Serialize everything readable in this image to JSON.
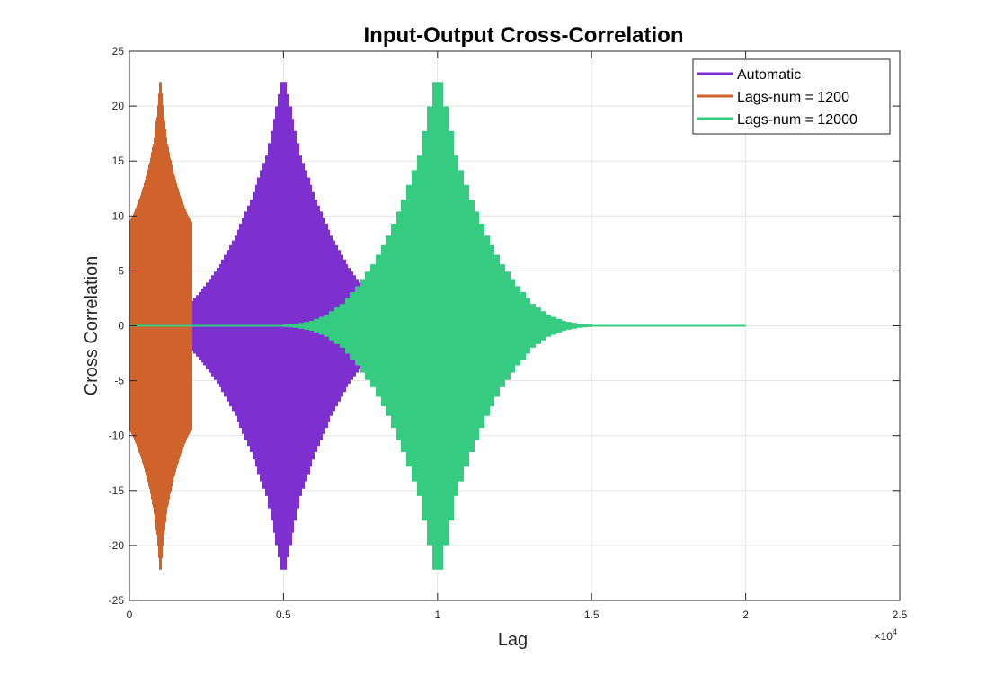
{
  "chart_data": {
    "type": "line",
    "title": "Input-Output Cross-Correlation",
    "xlabel": "Lag",
    "ylabel": "Cross Correlation",
    "x_exponent_label": "×10",
    "x_exponent_power": "4",
    "xlim": [
      0,
      25000
    ],
    "ylim": [
      -25,
      25
    ],
    "x_ticks": [
      0,
      5000,
      10000,
      15000,
      20000,
      25000
    ],
    "x_tick_labels": [
      "0",
      "0.5",
      "1",
      "1.5",
      "2",
      "2.5"
    ],
    "y_ticks": [
      -25,
      -20,
      -15,
      -10,
      -5,
      0,
      5,
      10,
      15,
      20,
      25
    ],
    "y_tick_labels": [
      "-25",
      "-20",
      "-15",
      "-10",
      "-5",
      "0",
      "5",
      "10",
      "15",
      "20",
      "25"
    ],
    "grid": true,
    "legend_position": "top-right",
    "series": [
      {
        "name": "Automatic",
        "color": "#7E2FD0",
        "x_range": [
          0,
          10000
        ],
        "peak_lag": 5000,
        "peak_value": 22.2,
        "envelope": {
          "lag_offset": [
            0,
            500,
            1000,
            1500,
            2000,
            2500,
            3000,
            3500,
            4000,
            4500,
            4800,
            5000
          ],
          "amplitude": [
            22.2,
            15.5,
            11.5,
            8.2,
            5.6,
            3.6,
            2.0,
            1.0,
            0.45,
            0.18,
            0.08,
            0.0
          ]
        }
      },
      {
        "name": "Lags-num = 1200",
        "color": "#D0622B",
        "x_range": [
          0,
          2000
        ],
        "peak_lag": 1000,
        "peak_value": 22.2,
        "envelope": {
          "lag_offset": [
            0,
            100,
            200,
            300,
            400,
            500,
            600,
            700,
            800,
            900,
            1000
          ],
          "amplitude": [
            22.2,
            19.0,
            16.8,
            15.3,
            14.0,
            13.0,
            12.0,
            11.3,
            10.5,
            9.9,
            9.4
          ]
        }
      },
      {
        "name": "Lags-num = 12000",
        "color": "#35CC81",
        "x_range": [
          0,
          20000
        ],
        "peak_lag": 10000,
        "peak_value": 22.2,
        "envelope": {
          "lag_offset": [
            0,
            500,
            1000,
            1500,
            2000,
            2500,
            3000,
            3500,
            4000,
            4500,
            5000,
            6000,
            10000
          ],
          "amplitude": [
            22.2,
            15.5,
            11.5,
            8.2,
            5.6,
            3.6,
            2.0,
            1.0,
            0.45,
            0.18,
            0.08,
            0.02,
            0.0
          ]
        }
      }
    ]
  }
}
